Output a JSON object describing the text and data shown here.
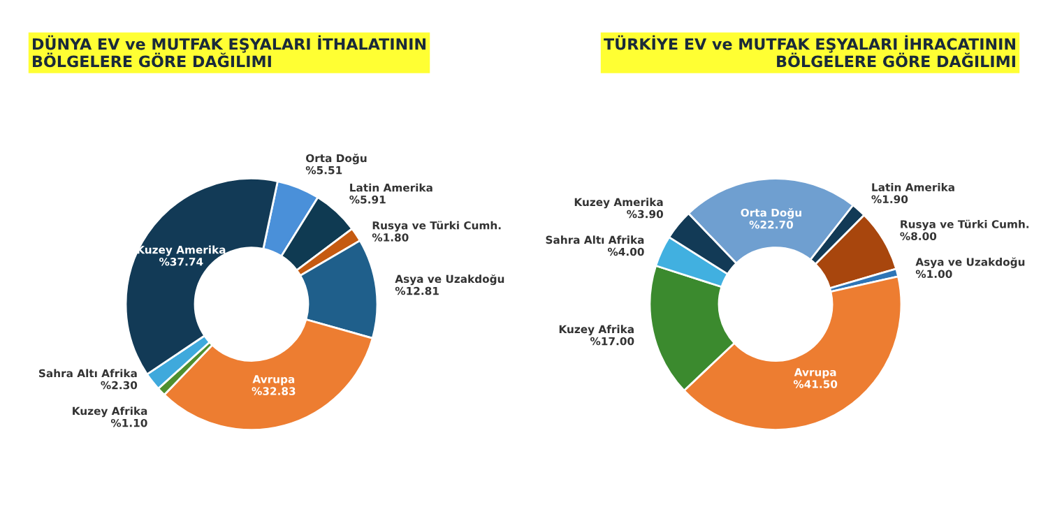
{
  "chart_data": [
    {
      "type": "donut",
      "title": "DÜNYA EV ve MUTFAK EŞYALARI İTHALATININ\nBÖLGELERE GÖRE DAĞILIMI",
      "categories": [
        "Orta Doğu",
        "Latin Amerika",
        "Rusya ve Türki Cumh.",
        "Asya ve Uzakdoğu",
        "Avrupa",
        "Kuzey Afrika",
        "Sahra Altı Afrika",
        "Kuzey Amerika"
      ],
      "values": [
        5.51,
        5.91,
        1.8,
        12.81,
        32.83,
        1.1,
        2.3,
        37.74
      ],
      "value_labels": [
        "%5.51",
        "%5.91",
        "%1.80",
        "%12.81",
        "%32.83",
        "%1.10",
        "%2.30",
        "%37.74"
      ],
      "colors": [
        "#4a90d9",
        "#0f3a52",
        "#c55a11",
        "#1f5f8b",
        "#ed7d31",
        "#4e8f2e",
        "#3fa9dc",
        "#123a56"
      ]
    },
    {
      "type": "donut",
      "title": "TÜRKİYE EV ve MUTFAK EŞYALARI İHRACATININ\nBÖLGELERE GÖRE DAĞILIMI",
      "categories": [
        "Latin Amerika",
        "Rusya ve Türki Cumh.",
        "Asya ve Uzakdoğu",
        "Avrupa",
        "Kuzey Afrika",
        "Sahra Altı Afrika",
        "Kuzey Amerika",
        "Orta Doğu"
      ],
      "values": [
        1.9,
        8.0,
        1.0,
        41.5,
        17.0,
        4.0,
        3.9,
        22.7
      ],
      "value_labels": [
        "%1.90",
        "%8.00",
        "%1.00",
        "%41.50",
        "%17.00",
        "%4.00",
        "%3.90",
        "%22.70"
      ],
      "colors": [
        "#123a56",
        "#a8460d",
        "#2e75b6",
        "#ed7d31",
        "#3b8a2e",
        "#41b0e0",
        "#123a56",
        "#6f9fd0"
      ]
    }
  ]
}
